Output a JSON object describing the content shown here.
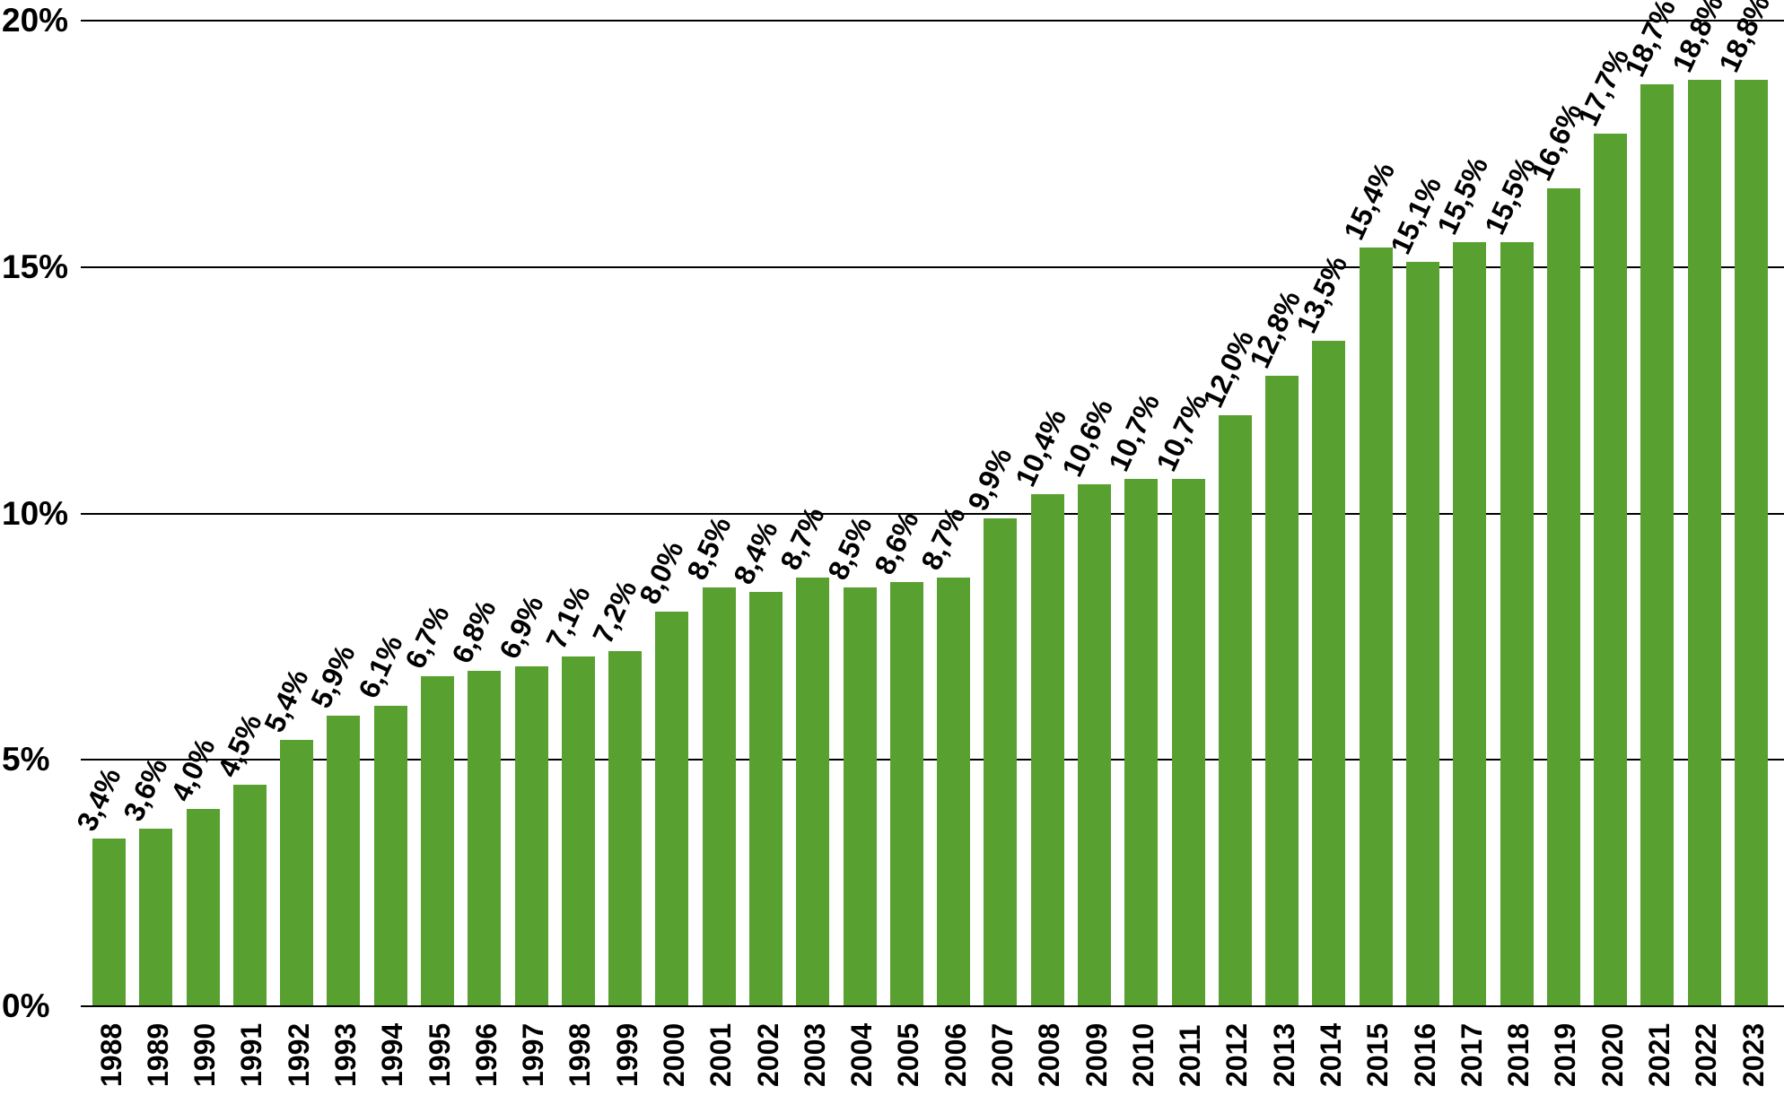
{
  "chart_data": {
    "type": "bar",
    "title": "",
    "xlabel": "",
    "ylabel": "",
    "categories": [
      "1988",
      "1989",
      "1990",
      "1991",
      "1992",
      "1993",
      "1994",
      "1995",
      "1996",
      "1997",
      "1998",
      "1999",
      "2000",
      "2001",
      "2002",
      "2003",
      "2004",
      "2005",
      "2006",
      "2007",
      "2008",
      "2009",
      "2010",
      "2011",
      "2012",
      "2013",
      "2014",
      "2015",
      "2016",
      "2017",
      "2018",
      "2019",
      "2020",
      "2021",
      "2022",
      "2023"
    ],
    "values": [
      3.4,
      3.6,
      4.0,
      4.5,
      5.4,
      5.9,
      6.1,
      6.7,
      6.8,
      6.9,
      7.1,
      7.2,
      8.0,
      8.5,
      8.4,
      8.7,
      8.5,
      8.6,
      8.7,
      9.9,
      10.4,
      10.6,
      10.7,
      10.7,
      12.0,
      12.8,
      13.5,
      15.4,
      15.1,
      15.5,
      15.5,
      16.6,
      17.7,
      18.7,
      18.8,
      18.8
    ],
    "value_labels": [
      "3,4%",
      "3,6%",
      "4,0%",
      "4,5%",
      "5,4%",
      "5,9%",
      "6,1%",
      "6,7%",
      "6,8%",
      "6,9%",
      "7,1%",
      "7,2%",
      "8,0%",
      "8,5%",
      "8,4%",
      "8,7%",
      "8,5%",
      "8,6%",
      "8,7%",
      "9,9%",
      "10,4%",
      "10,6%",
      "10,7%",
      "10,7%",
      "12,0%",
      "12,8%",
      "13,5%",
      "15,4%",
      "15,1%",
      "15,5%",
      "15,5%",
      "16,6%",
      "17,7%",
      "18,7%",
      "18,8%",
      "18,8%"
    ],
    "ylim": [
      0,
      20
    ],
    "y_ticks": [
      {
        "value": 0,
        "label": "0%"
      },
      {
        "value": 5,
        "label": "5%"
      },
      {
        "value": 10,
        "label": "10%"
      },
      {
        "value": 15,
        "label": "15%"
      },
      {
        "value": 20,
        "label": "20%"
      }
    ],
    "grid": true,
    "legend_position": "none",
    "value_label_rotation_deg": -65,
    "x_tick_rotation_deg": -90,
    "colors": {
      "bar": "#58A02F",
      "text": "#000000",
      "grid": "#000000",
      "axis": "#000000",
      "background": "#FFFFFF"
    }
  }
}
